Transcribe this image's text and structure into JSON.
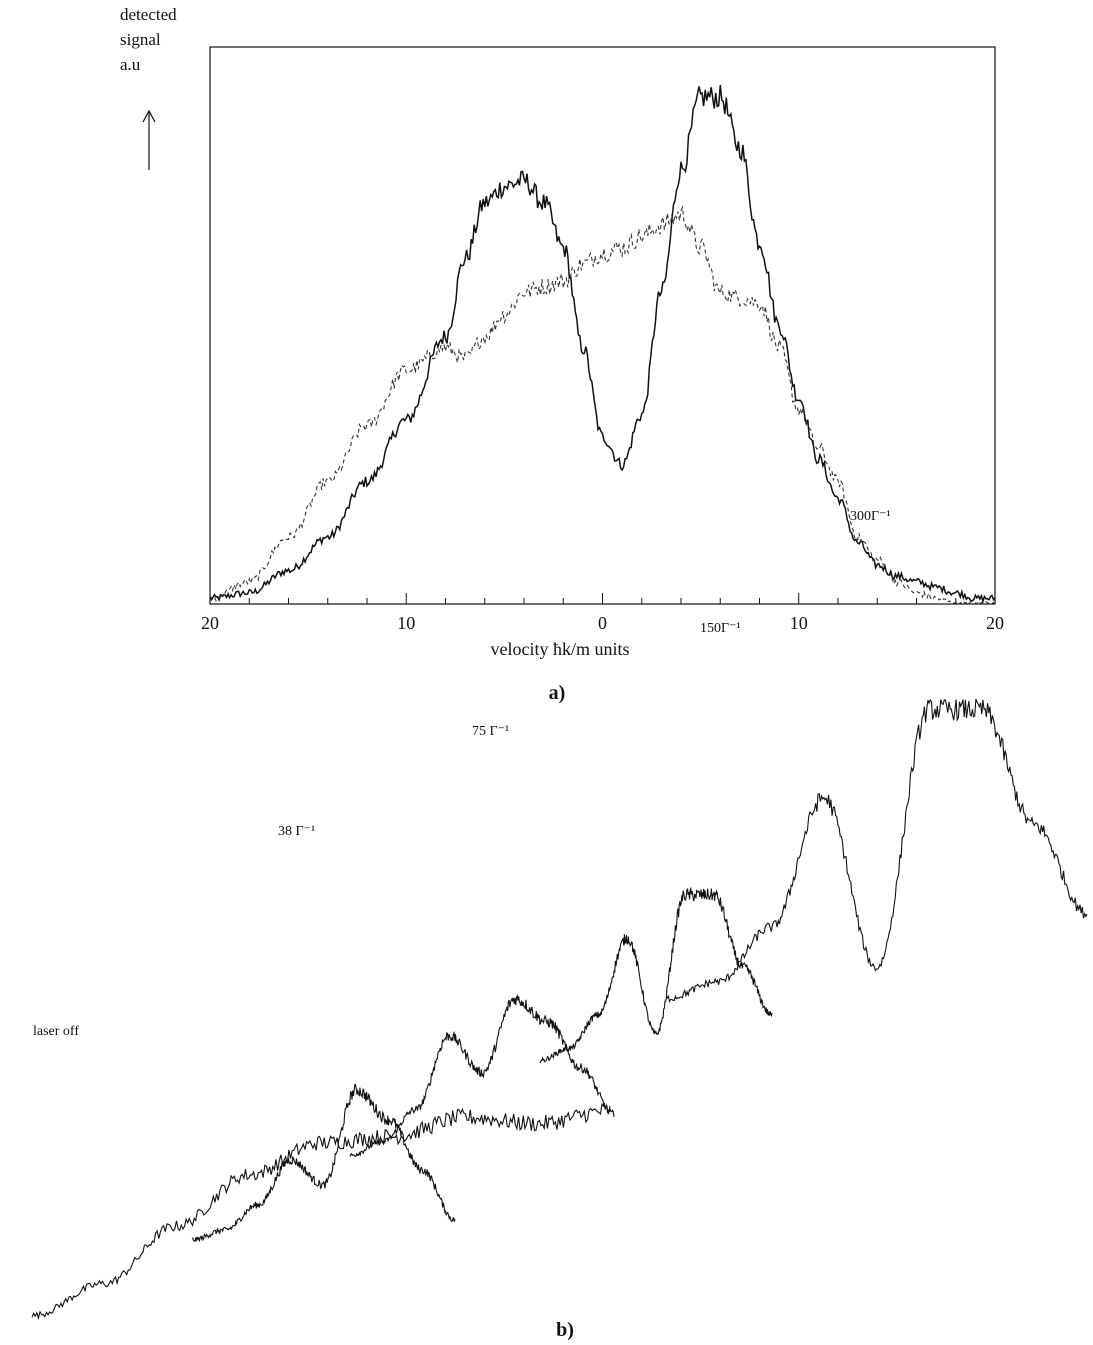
{
  "figure": {
    "panel_a_label": "a)",
    "panel_b_label": "b)"
  },
  "chart_data": [
    {
      "type": "line",
      "panel": "a)",
      "ylabel_lines": [
        "detected",
        "signal",
        "a.u"
      ],
      "xlabel": "velocity ħk/m units",
      "xlim": [
        -20,
        20
      ],
      "ylim": [
        0,
        1
      ],
      "x_tick_labels": [
        {
          "x": -20,
          "label": "20"
        },
        {
          "x": -10,
          "label": "10"
        },
        {
          "x": 0,
          "label": "0"
        },
        {
          "x": 10,
          "label": "10"
        },
        {
          "x": 20,
          "label": "20"
        }
      ],
      "x_minor_ticks": [
        -18,
        -16,
        -14,
        -12,
        -8,
        -6,
        -4,
        -2,
        2,
        4,
        6,
        8,
        12,
        14,
        16,
        18
      ],
      "grid": false,
      "series": [
        {
          "style": "solid",
          "color": "#111111",
          "x": [
            -20,
            -18,
            -16,
            -14,
            -12,
            -10,
            -8,
            -7,
            -6,
            -5,
            -4,
            -3,
            -2,
            -1,
            0,
            1,
            2,
            3,
            4,
            5,
            6,
            7,
            8,
            9,
            10,
            11,
            12,
            13,
            14,
            15,
            16,
            17,
            18,
            19,
            20
          ],
          "y": [
            0.01,
            0.02,
            0.06,
            0.12,
            0.22,
            0.33,
            0.48,
            0.62,
            0.72,
            0.75,
            0.76,
            0.72,
            0.64,
            0.46,
            0.3,
            0.25,
            0.34,
            0.56,
            0.78,
            0.91,
            0.91,
            0.82,
            0.65,
            0.5,
            0.37,
            0.26,
            0.19,
            0.11,
            0.07,
            0.05,
            0.04,
            0.03,
            0.02,
            0.01,
            0.01
          ]
        },
        {
          "style": "dashed",
          "color": "#333333",
          "x": [
            -20,
            -18,
            -16,
            -14,
            -12,
            -10,
            -8,
            -7,
            -6,
            -5,
            -4,
            -3,
            -2,
            -1,
            0,
            1,
            2,
            3,
            4,
            5,
            6,
            7,
            8,
            9,
            10,
            11,
            12,
            13,
            14,
            15,
            16,
            17,
            18,
            19,
            20
          ],
          "y": [
            0.01,
            0.04,
            0.12,
            0.22,
            0.32,
            0.42,
            0.46,
            0.44,
            0.48,
            0.52,
            0.56,
            0.57,
            0.58,
            0.61,
            0.63,
            0.64,
            0.66,
            0.68,
            0.7,
            0.64,
            0.56,
            0.55,
            0.54,
            0.46,
            0.35,
            0.28,
            0.22,
            0.12,
            0.08,
            0.04,
            0.02,
            0.01,
            0.0,
            0.0,
            0.0
          ]
        }
      ]
    },
    {
      "type": "line",
      "panel": "b)",
      "series": [
        {
          "name": "laser off",
          "x": [
            -20,
            -15,
            -10,
            -5,
            0,
            5,
            10,
            15,
            20
          ],
          "y": [
            0.02,
            0.12,
            0.3,
            0.46,
            0.56,
            0.58,
            0.64,
            0.62,
            0.66
          ]
        },
        {
          "name": "38 Γ⁻¹",
          "x": [
            -20,
            -15,
            -10,
            -5,
            0,
            5,
            10,
            15,
            20
          ],
          "y": [
            0.02,
            0.06,
            0.16,
            0.34,
            0.24,
            0.62,
            0.5,
            0.3,
            0.1
          ]
        },
        {
          "name": "75 Γ⁻¹",
          "x": [
            -20,
            -15,
            -10,
            -5,
            0,
            5,
            10,
            15,
            20
          ],
          "y": [
            0.02,
            0.08,
            0.22,
            0.54,
            0.38,
            0.7,
            0.6,
            0.4,
            0.2
          ]
        },
        {
          "name": "150Γ⁻¹",
          "x": [
            -20,
            -15,
            -10,
            -5,
            0,
            5,
            10,
            15,
            20
          ],
          "y": [
            0.01,
            0.06,
            0.2,
            0.52,
            0.12,
            0.7,
            0.7,
            0.4,
            0.2
          ]
        },
        {
          "name": "300Γ⁻¹",
          "x": [
            -20,
            -15,
            -10,
            -5,
            0,
            5,
            10,
            15,
            20
          ],
          "y": [
            0.01,
            0.06,
            0.22,
            0.6,
            0.1,
            0.86,
            0.86,
            0.52,
            0.26
          ]
        }
      ]
    }
  ]
}
